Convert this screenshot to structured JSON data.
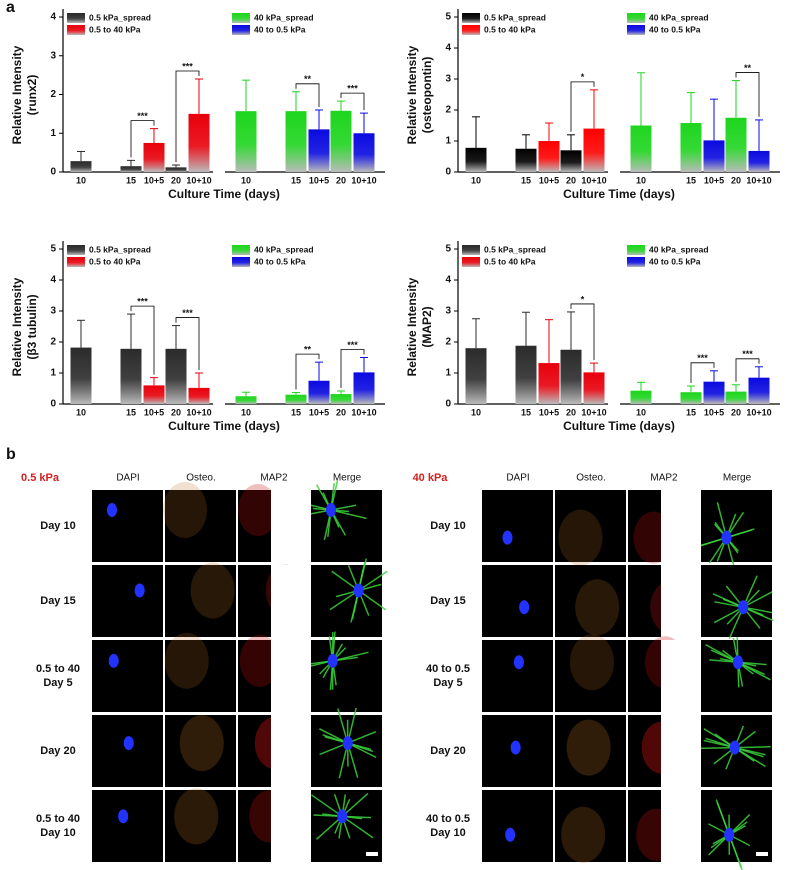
{
  "panel_a": "a",
  "chart_data": [
    {
      "type": "bar",
      "ylabel": [
        "Relative Intensity",
        "(runx2)"
      ],
      "xlabel": "Culture Time (days)",
      "categories": [
        "10",
        "15",
        "10+5",
        "20",
        "10+10",
        "10",
        "15",
        "10+5",
        "20",
        "10+10"
      ],
      "ylim": [
        0,
        4
      ],
      "yticks": [
        0,
        1,
        2,
        3,
        4
      ],
      "series": [
        {
          "name": "0.5 kPa_spread",
          "color": "#2b2b2b",
          "values": [
            0.28,
            0.15,
            null,
            0.12,
            null,
            null,
            null,
            null,
            null,
            null
          ],
          "errors": [
            0.25,
            0.15,
            null,
            0.06,
            null,
            null,
            null,
            null,
            null,
            null
          ],
          "significance": [
            null,
            null,
            null,
            null,
            null,
            null,
            null,
            null,
            null,
            null
          ]
        },
        {
          "name": "0.5 to 40 kPa",
          "color": "#e8000b",
          "values": [
            null,
            null,
            0.75,
            null,
            1.5,
            null,
            null,
            null,
            null,
            null
          ],
          "errors": [
            null,
            null,
            0.37,
            null,
            0.9,
            null,
            null,
            null,
            null,
            null
          ],
          "significance": [
            null,
            null,
            "***",
            null,
            "***",
            null,
            null,
            null,
            null,
            null
          ]
        },
        {
          "name": "40 kPa_spread",
          "color": "#1ed51e",
          "values": [
            null,
            null,
            null,
            null,
            null,
            1.57,
            1.57,
            null,
            1.58,
            null
          ],
          "errors": [
            null,
            null,
            null,
            null,
            null,
            0.8,
            0.5,
            null,
            0.25,
            null
          ],
          "significance": [
            null,
            null,
            null,
            null,
            null,
            null,
            null,
            null,
            null,
            null
          ]
        },
        {
          "name": "40 to 0.5 kPa",
          "color": "#0a0ae0",
          "values": [
            null,
            null,
            null,
            null,
            null,
            null,
            null,
            1.1,
            null,
            1.0
          ],
          "errors": [
            null,
            null,
            null,
            null,
            null,
            null,
            null,
            0.5,
            null,
            0.52
          ],
          "significance": [
            null,
            null,
            null,
            null,
            null,
            null,
            null,
            "**",
            null,
            "***"
          ]
        }
      ]
    },
    {
      "type": "bar",
      "ylabel": [
        "Relative Intensity",
        "(osteopontin)"
      ],
      "xlabel": "Culture Time (days)",
      "categories": [
        "10",
        "15",
        "10+5",
        "20",
        "10+10",
        "10",
        "15",
        "10+5",
        "20",
        "10+10"
      ],
      "ylim": [
        0,
        5
      ],
      "yticks": [
        0,
        1,
        2,
        3,
        4,
        5
      ],
      "series": [
        {
          "name": "0.5 kPa_spread",
          "color": "#000000",
          "values": [
            0.78,
            0.75,
            null,
            0.7,
            null,
            null,
            null,
            null,
            null,
            null
          ],
          "errors": [
            1.0,
            0.45,
            null,
            0.5,
            null,
            null,
            null,
            null,
            null,
            null
          ],
          "significance": [
            null,
            null,
            null,
            null,
            null,
            null,
            null,
            null,
            null,
            null
          ]
        },
        {
          "name": "0.5 to 40 kPa",
          "color": "#ff0000",
          "values": [
            null,
            null,
            1.0,
            null,
            1.4,
            null,
            null,
            null,
            null,
            null
          ],
          "errors": [
            null,
            null,
            0.58,
            null,
            1.25,
            null,
            null,
            null,
            null,
            null
          ],
          "significance": [
            null,
            null,
            null,
            null,
            "*",
            null,
            null,
            null,
            null,
            null
          ]
        },
        {
          "name": "40 kPa_spread",
          "color": "#1ed51e",
          "values": [
            null,
            null,
            null,
            null,
            null,
            1.5,
            1.58,
            null,
            1.75,
            null
          ],
          "errors": [
            null,
            null,
            null,
            null,
            null,
            1.7,
            0.98,
            null,
            1.2,
            null
          ],
          "significance": [
            null,
            null,
            null,
            null,
            null,
            null,
            null,
            null,
            null,
            null
          ]
        },
        {
          "name": "40 to 0.5 kPa",
          "color": "#0a0ae0",
          "values": [
            null,
            null,
            null,
            null,
            null,
            null,
            null,
            1.02,
            null,
            0.68
          ],
          "errors": [
            null,
            null,
            null,
            null,
            null,
            null,
            null,
            1.33,
            null,
            1.0
          ],
          "significance": [
            null,
            null,
            null,
            null,
            null,
            null,
            null,
            null,
            null,
            "**"
          ]
        }
      ]
    },
    {
      "type": "bar",
      "ylabel": [
        "Relative Intensity",
        "(β3 tubulin)"
      ],
      "xlabel": "Culture Time (days)",
      "categories": [
        "10",
        "15",
        "10+5",
        "20",
        "10+10",
        "10",
        "15",
        "10+5",
        "20",
        "10+10"
      ],
      "ylim": [
        0,
        5
      ],
      "yticks": [
        0,
        1,
        2,
        3,
        4,
        5
      ],
      "series": [
        {
          "name": "0.5 kPa_spread",
          "color": "#2b2b2b",
          "values": [
            1.82,
            1.78,
            null,
            1.78,
            null,
            null,
            null,
            null,
            null,
            null
          ],
          "errors": [
            0.88,
            1.12,
            null,
            0.75,
            null,
            null,
            null,
            null,
            null,
            null
          ],
          "significance": [
            null,
            null,
            null,
            null,
            null,
            null,
            null,
            null,
            null,
            null
          ]
        },
        {
          "name": "0.5 to 40 kPa",
          "color": "#e8000b",
          "values": [
            null,
            null,
            0.6,
            null,
            0.52,
            null,
            null,
            null,
            null,
            null
          ],
          "errors": [
            null,
            null,
            0.25,
            null,
            0.48,
            null,
            null,
            null,
            null,
            null
          ],
          "significance": [
            null,
            null,
            "***",
            null,
            "***",
            null,
            null,
            null,
            null,
            null
          ]
        },
        {
          "name": "40 kPa_spread",
          "color": "#1ed51e",
          "values": [
            null,
            null,
            null,
            null,
            null,
            0.25,
            0.3,
            null,
            0.32,
            null
          ],
          "errors": [
            null,
            null,
            null,
            null,
            null,
            0.13,
            0.07,
            null,
            0.1,
            null
          ],
          "significance": [
            null,
            null,
            null,
            null,
            null,
            null,
            null,
            null,
            null,
            null
          ]
        },
        {
          "name": "40 to 0.5 kPa",
          "color": "#0a0ae0",
          "values": [
            null,
            null,
            null,
            null,
            null,
            null,
            null,
            0.75,
            null,
            1.02
          ],
          "errors": [
            null,
            null,
            null,
            null,
            null,
            null,
            null,
            0.6,
            null,
            0.48
          ],
          "significance": [
            null,
            null,
            null,
            null,
            null,
            null,
            null,
            "**",
            null,
            "***"
          ]
        }
      ]
    },
    {
      "type": "bar",
      "ylabel": [
        "Relative Intensity",
        "(MAP2)"
      ],
      "xlabel": "Culture Time (days)",
      "categories": [
        "10",
        "15",
        "10+5",
        "20",
        "10+10",
        "10",
        "15",
        "10+5",
        "20",
        "10+10"
      ],
      "ylim": [
        0,
        5
      ],
      "yticks": [
        0,
        1,
        2,
        3,
        4,
        5
      ],
      "series": [
        {
          "name": "0.5 kPa_spread",
          "color": "#2b2b2b",
          "values": [
            1.8,
            1.88,
            null,
            1.75,
            null,
            null,
            null,
            null,
            null,
            null
          ],
          "errors": [
            0.95,
            1.08,
            null,
            1.22,
            null,
            null,
            null,
            null,
            null,
            null
          ],
          "significance": [
            null,
            null,
            null,
            null,
            null,
            null,
            null,
            null,
            null,
            null
          ]
        },
        {
          "name": "0.5 to 40 kPa",
          "color": "#e8000b",
          "values": [
            null,
            null,
            1.32,
            null,
            1.02,
            null,
            null,
            null,
            null,
            null
          ],
          "errors": [
            null,
            null,
            1.4,
            null,
            0.3,
            null,
            null,
            null,
            null,
            null
          ],
          "significance": [
            null,
            null,
            null,
            null,
            "*",
            null,
            null,
            null,
            null,
            null
          ]
        },
        {
          "name": "40 kPa_spread",
          "color": "#1ed51e",
          "values": [
            null,
            null,
            null,
            null,
            null,
            0.43,
            0.38,
            null,
            0.4,
            null
          ],
          "errors": [
            null,
            null,
            null,
            null,
            null,
            0.27,
            0.2,
            null,
            0.22,
            null
          ],
          "significance": [
            null,
            null,
            null,
            null,
            null,
            null,
            null,
            null,
            null,
            null
          ]
        },
        {
          "name": "40 to 0.5 kPa",
          "color": "#0a0ae0",
          "values": [
            null,
            null,
            null,
            null,
            null,
            null,
            null,
            0.72,
            null,
            0.85
          ],
          "errors": [
            null,
            null,
            null,
            null,
            null,
            null,
            null,
            0.35,
            null,
            0.35
          ],
          "significance": [
            null,
            null,
            null,
            null,
            null,
            null,
            null,
            "***",
            null,
            "***"
          ]
        }
      ]
    }
  ],
  "image_panel": {
    "label": "b",
    "panels": [
      {
        "condition": "0.5 kPa",
        "columns": [
          "DAPI",
          "Osteo.",
          "MAP2",
          "Merge"
        ],
        "rows": [
          [
            "Day 10"
          ],
          [
            "Day 15"
          ],
          [
            "0.5 to 40",
            "Day 5"
          ],
          [
            "Day 20"
          ],
          [
            "0.5 to 40",
            "Day 10"
          ]
        ]
      },
      {
        "condition": "40 kPa",
        "columns": [
          "DAPI",
          "Osteo.",
          "MAP2",
          "Merge"
        ],
        "rows": [
          [
            "Day 10"
          ],
          [
            "Day 15"
          ],
          [
            "40 to 0.5",
            "Day 5"
          ],
          [
            "Day 20"
          ],
          [
            "40 to 0.5",
            "Day 10"
          ]
        ]
      }
    ]
  }
}
